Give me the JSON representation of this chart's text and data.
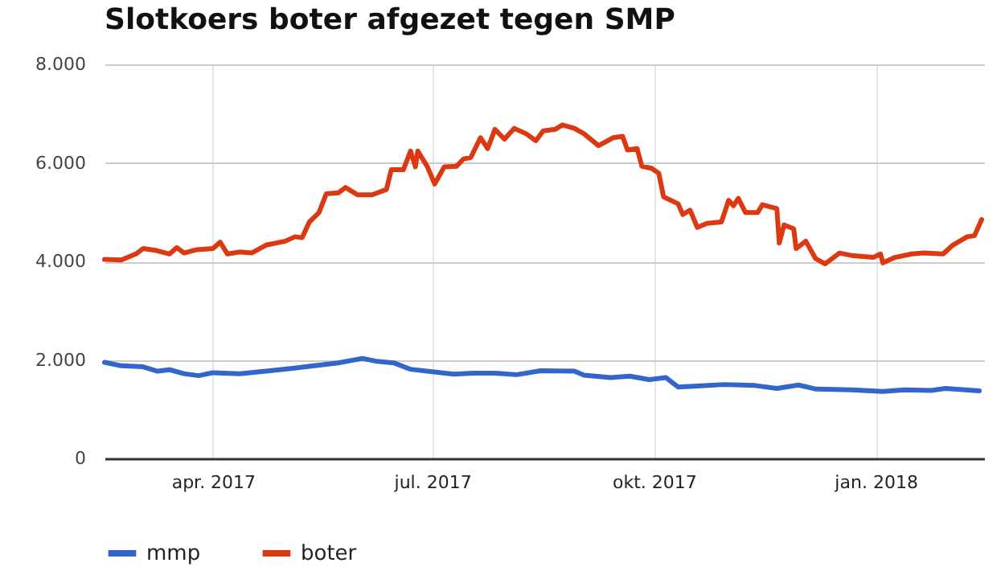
{
  "chart_data": {
    "type": "line",
    "title": "Slotkoers boter afgezet tegen SMP",
    "xlim": [
      "2017-02-15",
      "2018-02-15"
    ],
    "xticks": [
      {
        "value": "2017-04-01",
        "label": "apr. 2017"
      },
      {
        "value": "2017-07-01",
        "label": "jul. 2017"
      },
      {
        "value": "2017-10-01",
        "label": "okt. 2017"
      },
      {
        "value": "2018-01-01",
        "label": "jan. 2018"
      }
    ],
    "ylim": [
      0,
      8000
    ],
    "yticks": [
      {
        "value": 0,
        "label": "0"
      },
      {
        "value": 2000,
        "label": "2.000"
      },
      {
        "value": 4000,
        "label": "4.000"
      },
      {
        "value": 6000,
        "label": "6.000"
      },
      {
        "value": 8000,
        "label": "8.000"
      }
    ],
    "grid": true,
    "legend": "bottom",
    "marker": "none",
    "line_style": "solid",
    "series": [
      {
        "name": "mmp",
        "color": "#3366cc",
        "x": [
          "2017-02-15",
          "2017-02-22",
          "2017-03-03",
          "2017-03-09",
          "2017-03-14",
          "2017-03-20",
          "2017-03-26",
          "2017-04-01",
          "2017-04-12",
          "2017-04-23",
          "2017-05-04",
          "2017-05-13",
          "2017-05-23",
          "2017-06-02",
          "2017-06-08",
          "2017-06-15",
          "2017-06-22",
          "2017-07-01",
          "2017-07-10",
          "2017-07-18",
          "2017-07-27",
          "2017-08-05",
          "2017-08-15",
          "2017-08-29",
          "2017-09-02",
          "2017-09-13",
          "2017-09-21",
          "2017-09-29",
          "2017-10-06",
          "2017-10-11",
          "2017-10-19",
          "2017-10-30",
          "2017-11-12",
          "2017-11-21",
          "2017-11-30",
          "2017-12-07",
          "2017-12-22",
          "2018-01-04",
          "2018-01-13",
          "2018-01-24",
          "2018-01-30",
          "2018-02-13"
        ],
        "values": [
          1950,
          1880,
          1860,
          1770,
          1800,
          1720,
          1680,
          1740,
          1720,
          1770,
          1830,
          1880,
          1940,
          2030,
          1970,
          1940,
          1810,
          1760,
          1710,
          1730,
          1730,
          1700,
          1780,
          1770,
          1690,
          1640,
          1670,
          1600,
          1640,
          1450,
          1470,
          1500,
          1480,
          1420,
          1490,
          1410,
          1390,
          1360,
          1390,
          1380,
          1420,
          1370
        ]
      },
      {
        "name": "boter",
        "color": "#dc3912",
        "x": [
          "2017-02-15",
          "2017-02-22",
          "2017-02-28",
          "2017-03-03",
          "2017-03-08",
          "2017-03-14",
          "2017-03-17",
          "2017-03-20",
          "2017-03-25",
          "2017-04-01",
          "2017-04-04",
          "2017-04-07",
          "2017-04-12",
          "2017-04-17",
          "2017-04-23",
          "2017-05-01",
          "2017-05-05",
          "2017-05-08",
          "2017-05-11",
          "2017-05-15",
          "2017-05-18",
          "2017-05-23",
          "2017-05-26",
          "2017-05-31",
          "2017-06-06",
          "2017-06-12",
          "2017-06-14",
          "2017-06-19",
          "2017-06-22",
          "2017-06-24",
          "2017-06-25",
          "2017-06-29",
          "2017-07-02",
          "2017-07-06",
          "2017-07-11",
          "2017-07-14",
          "2017-07-17",
          "2017-07-21",
          "2017-07-24",
          "2017-07-27",
          "2017-07-31",
          "2017-08-04",
          "2017-08-09",
          "2017-08-13",
          "2017-08-16",
          "2017-08-21",
          "2017-08-24",
          "2017-08-29",
          "2017-09-02",
          "2017-09-08",
          "2017-09-14",
          "2017-09-18",
          "2017-09-20",
          "2017-09-24",
          "2017-09-26",
          "2017-09-30",
          "2017-10-03",
          "2017-10-05",
          "2017-10-11",
          "2017-10-13",
          "2017-10-16",
          "2017-10-19",
          "2017-10-23",
          "2017-10-29",
          "2017-11-01",
          "2017-11-03",
          "2017-11-05",
          "2017-11-08",
          "2017-11-13",
          "2017-11-15",
          "2017-11-21",
          "2017-11-22",
          "2017-11-24",
          "2017-11-28",
          "2017-11-29",
          "2017-12-03",
          "2017-12-07",
          "2017-12-11",
          "2017-12-17",
          "2017-12-22",
          "2017-12-31",
          "2018-01-03",
          "2018-01-04",
          "2018-01-09",
          "2018-01-16",
          "2018-01-21",
          "2018-01-29",
          "2018-02-02",
          "2018-02-08",
          "2018-02-11",
          "2018-02-14"
        ],
        "values": [
          4040,
          4030,
          4150,
          4260,
          4225,
          4150,
          4280,
          4170,
          4235,
          4260,
          4390,
          4150,
          4190,
          4170,
          4330,
          4410,
          4500,
          4480,
          4800,
          4990,
          5370,
          5390,
          5500,
          5350,
          5350,
          5460,
          5860,
          5860,
          6240,
          5920,
          6240,
          5920,
          5570,
          5920,
          5930,
          6080,
          6110,
          6510,
          6290,
          6680,
          6480,
          6700,
          6590,
          6450,
          6650,
          6680,
          6770,
          6700,
          6590,
          6350,
          6510,
          6540,
          6260,
          6290,
          5930,
          5890,
          5790,
          5310,
          5170,
          4950,
          5040,
          4690,
          4770,
          4800,
          5240,
          5130,
          5280,
          4990,
          4990,
          5150,
          5070,
          4370,
          4740,
          4660,
          4260,
          4410,
          4060,
          3950,
          4170,
          4120,
          4080,
          4150,
          3970,
          4080,
          4150,
          4170,
          4150,
          4330,
          4500,
          4520,
          4850
        ]
      }
    ]
  }
}
